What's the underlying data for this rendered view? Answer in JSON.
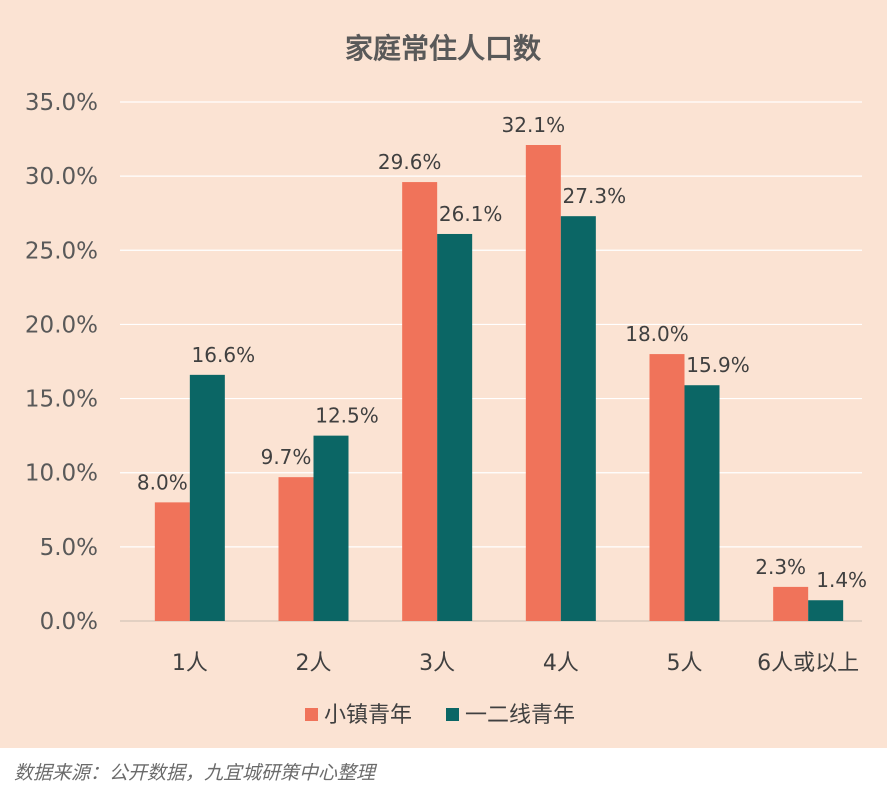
{
  "chart_data": {
    "type": "bar",
    "title": "家庭常住人口数",
    "categories": [
      "1人",
      "2人",
      "3人",
      "4人",
      "5人",
      "6人或以上"
    ],
    "series": [
      {
        "name": "小镇青年",
        "color": "#f0735a",
        "values": [
          8.0,
          9.7,
          29.6,
          32.1,
          18.0,
          2.3
        ],
        "labels": [
          "8.0%",
          "9.7%",
          "29.6%",
          "32.1%",
          "18.0%",
          "2.3%"
        ]
      },
      {
        "name": "一二线青年",
        "color": "#0b6665",
        "values": [
          16.6,
          12.5,
          26.1,
          27.3,
          15.9,
          1.4
        ],
        "labels": [
          "16.6%",
          "12.5%",
          "26.1%",
          "27.3%",
          "15.9%",
          "1.4%"
        ]
      }
    ],
    "yticks": [
      "0.0%",
      "5.0%",
      "10.0%",
      "15.0%",
      "20.0%",
      "25.0%",
      "30.0%",
      "35.0%"
    ],
    "ylim": [
      0,
      35
    ],
    "xlabel": "",
    "ylabel": "",
    "grid": true,
    "legend_position": "bottom",
    "background_color": "#fbe3d3"
  },
  "source_note": "数据来源：公开数据，九宜城研策中心整理"
}
